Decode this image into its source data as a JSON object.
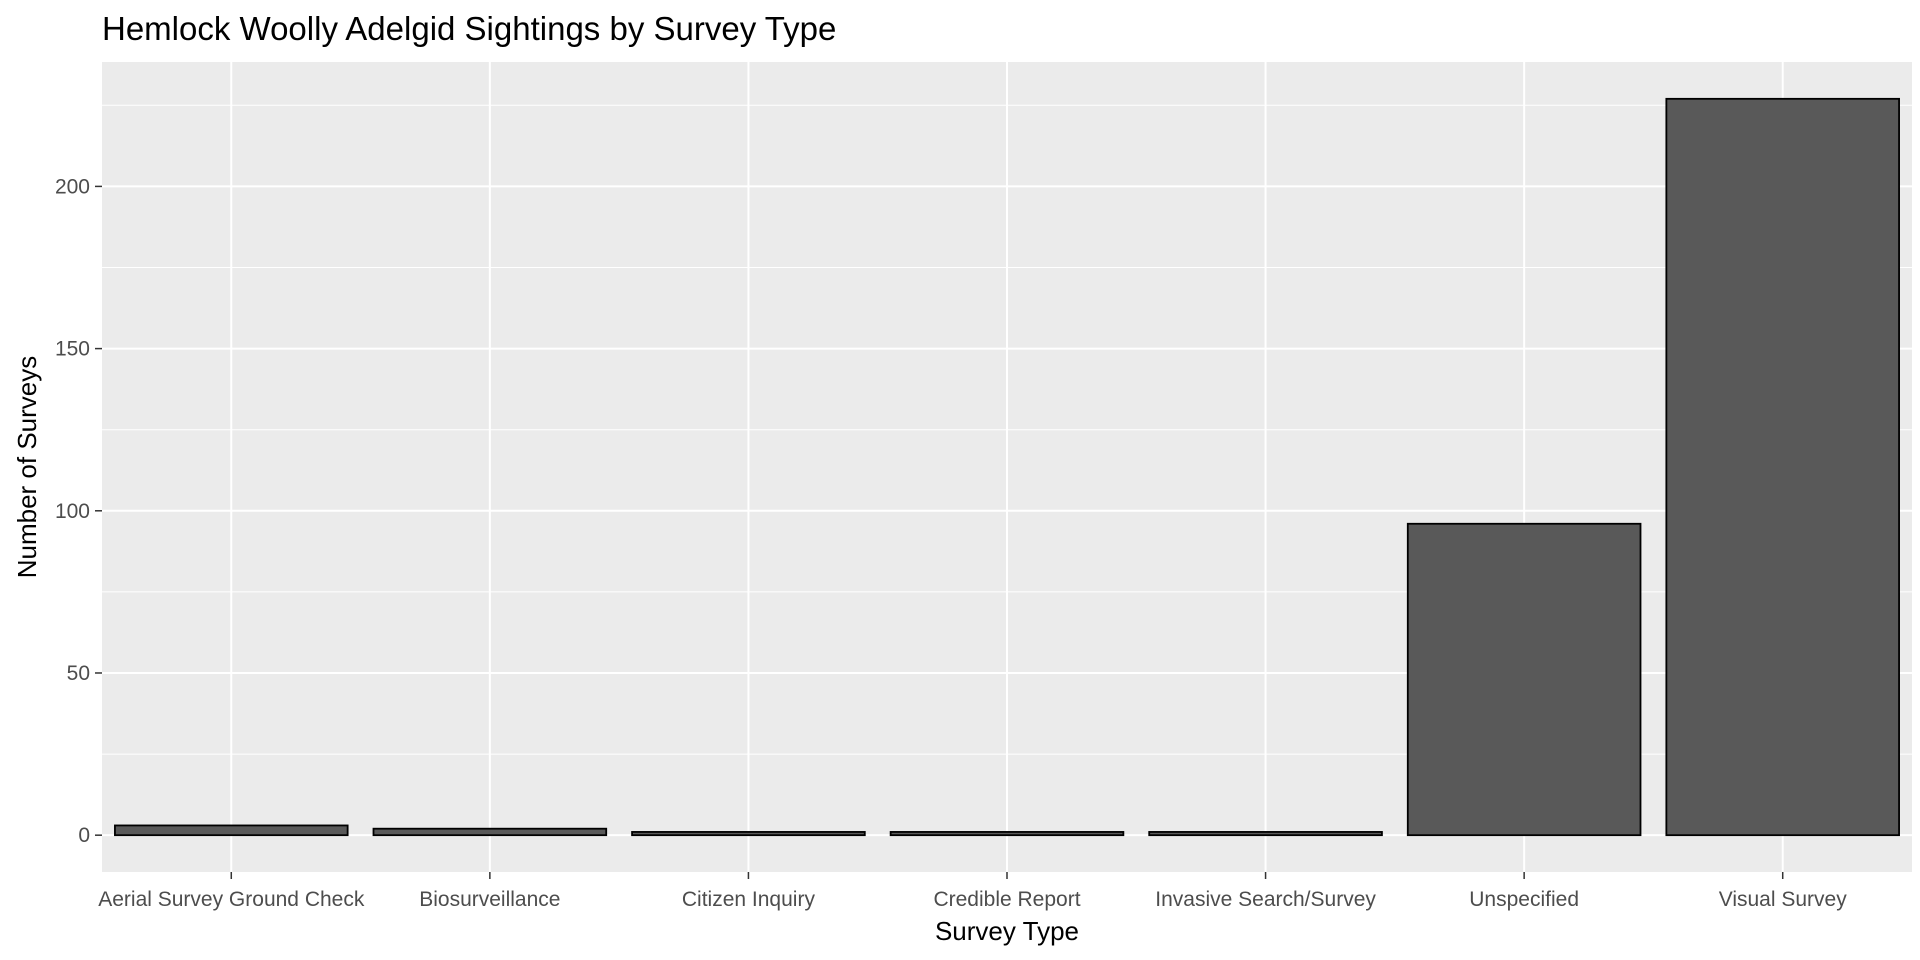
{
  "chart_data": {
    "type": "bar",
    "title": "Hemlock Woolly Adelgid Sightings by Survey Type",
    "xlabel": "Survey Type",
    "ylabel": "Number of Surveys",
    "categories": [
      "Aerial Survey Ground Check",
      "Biosurveillance",
      "Citizen Inquiry",
      "Credible Report",
      "Invasive Search/Survey",
      "Unspecified",
      "Visual Survey"
    ],
    "values": [
      3,
      2,
      1,
      1,
      1,
      96,
      227
    ],
    "ylim": [
      -11.35,
      238.35
    ],
    "yticks": [
      0,
      50,
      100,
      150,
      200
    ],
    "grid": true,
    "legend": "none",
    "colors": {
      "panel_background": "#EBEBEB",
      "grid": "#FFFFFF",
      "bar_fill": "#595959",
      "bar_outline": "#000000",
      "tick_text": "#4D4D4D"
    }
  }
}
